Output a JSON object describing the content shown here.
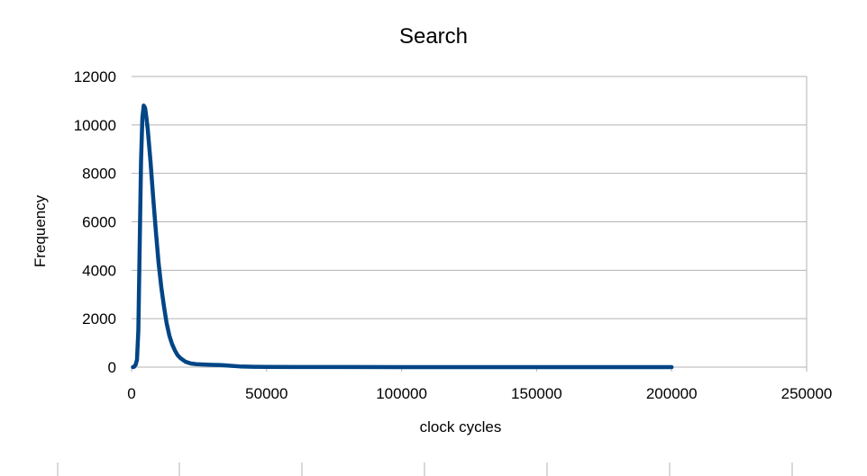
{
  "chart_data": {
    "type": "line",
    "title": "Search",
    "xlabel": "clock cycles",
    "ylabel": "Frequency",
    "xlim": [
      0,
      250000
    ],
    "ylim": [
      0,
      12000
    ],
    "x_ticks": [
      "0",
      "50000",
      "100000",
      "150000",
      "200000",
      "250000"
    ],
    "y_ticks": [
      "0",
      "2000",
      "4000",
      "6000",
      "8000",
      "10000",
      "12000"
    ],
    "grid": "horizontal",
    "legend": "none",
    "series": [
      {
        "color": "#004586",
        "x": [
          500,
          1000,
          1500,
          2000,
          2500,
          3000,
          3500,
          4000,
          4500,
          5000,
          5500,
          6000,
          7000,
          8000,
          9000,
          10000,
          11000,
          12000,
          13000,
          14000,
          15000,
          16000,
          17000,
          18000,
          19000,
          20000,
          22000,
          24000,
          26000,
          28000,
          30000,
          32000,
          34000,
          36000,
          40000,
          45000,
          50000,
          60000,
          80000,
          100000,
          150000,
          200000
        ],
        "y": [
          0,
          20,
          100,
          300,
          1500,
          5000,
          8500,
          10300,
          10800,
          10700,
          10300,
          9800,
          8500,
          7000,
          5600,
          4300,
          3300,
          2500,
          1800,
          1300,
          950,
          700,
          500,
          380,
          300,
          220,
          150,
          120,
          110,
          100,
          95,
          90,
          80,
          60,
          30,
          15,
          10,
          5,
          3,
          2,
          1,
          0
        ]
      }
    ]
  }
}
